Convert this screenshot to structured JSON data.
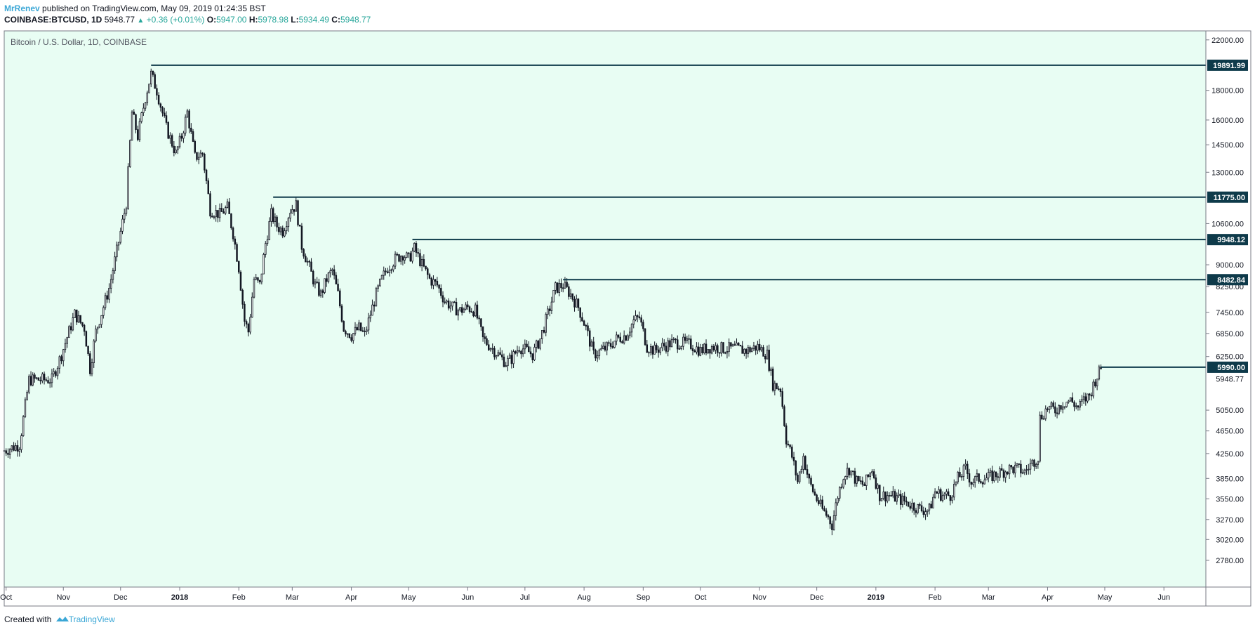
{
  "header": {
    "username": "MrRenev",
    "published_text": "published on TradingView.com, May 09, 2019 01:24:35 BST",
    "symbol": "COINBASE:BTCUSD, 1D",
    "price": "5948.77",
    "change": "+0.36 (+0.01%)",
    "open_label": "O:",
    "open": "5947.00",
    "high_label": "H:",
    "high": "5978.98",
    "low_label": "L:",
    "low": "5934.49",
    "close_label": "C:",
    "close": "5948.77"
  },
  "footer": {
    "created_with": "Created with",
    "brand": "TradingView"
  },
  "colors": {
    "background": "#e8fdf3",
    "candle": "#131722",
    "level_line": "#0e3a4a",
    "label_bg": "#0e3a4a",
    "accent": "#26a69a",
    "brand": "#3ba7d6"
  },
  "chart_data": {
    "type": "candlestick",
    "title": "Bitcoin / U.S. Dollar, 1D, COINBASE",
    "x_start": "2017-10-01",
    "x_end": "2019-06-24",
    "xlim_days": [
      0,
      630
    ],
    "y_scale": "log",
    "ylim": [
      2500,
      22800
    ],
    "y_ticks": [
      22000,
      18000,
      16000,
      14500,
      13000,
      10600,
      9000,
      8250,
      7450,
      6850,
      6250,
      5050,
      4650,
      4250,
      3850,
      3550,
      3270,
      3020,
      2780
    ],
    "x_ticks": [
      {
        "label": "Oct",
        "day": 1
      },
      {
        "label": "Nov",
        "day": 31
      },
      {
        "label": "Dec",
        "day": 61
      },
      {
        "label": "2018",
        "day": 92,
        "bold": true
      },
      {
        "label": "Feb",
        "day": 123
      },
      {
        "label": "Mar",
        "day": 151
      },
      {
        "label": "Apr",
        "day": 182
      },
      {
        "label": "May",
        "day": 212
      },
      {
        "label": "Jun",
        "day": 243
      },
      {
        "label": "Jul",
        "day": 273
      },
      {
        "label": "Aug",
        "day": 304
      },
      {
        "label": "Sep",
        "day": 335
      },
      {
        "label": "Oct",
        "day": 365
      },
      {
        "label": "Nov",
        "day": 396
      },
      {
        "label": "Dec",
        "day": 426
      },
      {
        "label": "2019",
        "day": 457,
        "bold": true
      },
      {
        "label": "Feb",
        "day": 488
      },
      {
        "label": "Mar",
        "day": 516
      },
      {
        "label": "Apr",
        "day": 547
      },
      {
        "label": "May",
        "day": 577
      },
      {
        "label": "Jun",
        "day": 608
      }
    ],
    "levels": [
      {
        "price": 19891.99,
        "label": "19891.99",
        "from_day": 77
      },
      {
        "price": 11775.0,
        "label": "11775.00",
        "from_day": 141
      },
      {
        "price": 9948.12,
        "label": "9948.12",
        "from_day": 214
      },
      {
        "price": 8482.84,
        "label": "8482.84",
        "from_day": 293
      },
      {
        "price": 5990.0,
        "label": "5990.00",
        "from_day": 575
      }
    ],
    "current_price": {
      "price": 5948.77,
      "label": "5948.77"
    },
    "close_path": [
      [
        0,
        4300
      ],
      [
        8,
        4400
      ],
      [
        13,
        5700
      ],
      [
        20,
        5700
      ],
      [
        25,
        5700
      ],
      [
        30,
        6300
      ],
      [
        37,
        7400
      ],
      [
        42,
        7000
      ],
      [
        45,
        5950
      ],
      [
        48,
        6900
      ],
      [
        55,
        8200
      ],
      [
        59,
        9500
      ],
      [
        64,
        11500
      ],
      [
        67,
        16500
      ],
      [
        70,
        15000
      ],
      [
        74,
        17500
      ],
      [
        77,
        19200
      ],
      [
        80,
        18000
      ],
      [
        85,
        15500
      ],
      [
        90,
        14000
      ],
      [
        93,
        15000
      ],
      [
        96,
        16500
      ],
      [
        100,
        13800
      ],
      [
        104,
        14000
      ],
      [
        108,
        11200
      ],
      [
        113,
        11000
      ],
      [
        117,
        11300
      ],
      [
        120,
        10200
      ],
      [
        123,
        8900
      ],
      [
        126,
        7200
      ],
      [
        128,
        6900
      ],
      [
        131,
        8500
      ],
      [
        134,
        8300
      ],
      [
        137,
        9800
      ],
      [
        140,
        11000
      ],
      [
        143,
        10500
      ],
      [
        146,
        10300
      ],
      [
        150,
        11200
      ],
      [
        153,
        11400
      ],
      [
        156,
        9700
      ],
      [
        160,
        8900
      ],
      [
        163,
        8300
      ],
      [
        166,
        8000
      ],
      [
        169,
        8500
      ],
      [
        172,
        8800
      ],
      [
        175,
        8000
      ],
      [
        178,
        7000
      ],
      [
        182,
        6800
      ],
      [
        186,
        7000
      ],
      [
        189,
        6800
      ],
      [
        192,
        7400
      ],
      [
        195,
        8000
      ],
      [
        198,
        8500
      ],
      [
        201,
        8900
      ],
      [
        205,
        9200
      ],
      [
        209,
        9400
      ],
      [
        212,
        9200
      ],
      [
        215,
        9600
      ],
      [
        219,
        9000
      ],
      [
        223,
        8500
      ],
      [
        227,
        8300
      ],
      [
        231,
        7800
      ],
      [
        235,
        7600
      ],
      [
        239,
        7500
      ],
      [
        243,
        7600
      ],
      [
        247,
        7500
      ],
      [
        251,
        6700
      ],
      [
        255,
        6500
      ],
      [
        259,
        6300
      ],
      [
        263,
        6100
      ],
      [
        266,
        6200
      ],
      [
        270,
        6500
      ],
      [
        274,
        6400
      ],
      [
        277,
        6300
      ],
      [
        281,
        6700
      ],
      [
        285,
        7400
      ],
      [
        289,
        8200
      ],
      [
        293,
        8300
      ],
      [
        297,
        8000
      ],
      [
        301,
        7600
      ],
      [
        305,
        7000
      ],
      [
        309,
        6300
      ],
      [
        313,
        6400
      ],
      [
        317,
        6500
      ],
      [
        321,
        6700
      ],
      [
        326,
        6800
      ],
      [
        330,
        7200
      ],
      [
        333,
        7300
      ],
      [
        337,
        6500
      ],
      [
        341,
        6400
      ],
      [
        345,
        6500
      ],
      [
        350,
        6600
      ],
      [
        355,
        6600
      ],
      [
        360,
        6550
      ],
      [
        365,
        6400
      ],
      [
        371,
        6500
      ],
      [
        377,
        6450
      ],
      [
        383,
        6450
      ],
      [
        389,
        6400
      ],
      [
        395,
        6500
      ],
      [
        400,
        6300
      ],
      [
        403,
        5600
      ],
      [
        407,
        5500
      ],
      [
        410,
        4500
      ],
      [
        413,
        4200
      ],
      [
        416,
        3800
      ],
      [
        419,
        4200
      ],
      [
        422,
        3800
      ],
      [
        425,
        3600
      ],
      [
        429,
        3400
      ],
      [
        432,
        3300
      ],
      [
        434,
        3200
      ],
      [
        437,
        3600
      ],
      [
        440,
        3900
      ],
      [
        443,
        4000
      ],
      [
        447,
        3800
      ],
      [
        451,
        3750
      ],
      [
        455,
        4000
      ],
      [
        459,
        3600
      ],
      [
        464,
        3600
      ],
      [
        469,
        3550
      ],
      [
        473,
        3500
      ],
      [
        477,
        3450
      ],
      [
        481,
        3400
      ],
      [
        485,
        3400
      ],
      [
        488,
        3650
      ],
      [
        492,
        3600
      ],
      [
        496,
        3600
      ],
      [
        500,
        3850
      ],
      [
        504,
        4000
      ],
      [
        507,
        3800
      ],
      [
        511,
        3850
      ],
      [
        515,
        3850
      ],
      [
        519,
        3900
      ],
      [
        523,
        3950
      ],
      [
        527,
        4000
      ],
      [
        531,
        4000
      ],
      [
        535,
        3950
      ],
      [
        539,
        4100
      ],
      [
        542,
        4200
      ],
      [
        543,
        4900
      ],
      [
        547,
        5100
      ],
      [
        551,
        5050
      ],
      [
        555,
        5200
      ],
      [
        559,
        5250
      ],
      [
        563,
        5100
      ],
      [
        566,
        5250
      ],
      [
        569,
        5350
      ],
      [
        572,
        5700
      ],
      [
        575,
        5948.77
      ]
    ]
  }
}
